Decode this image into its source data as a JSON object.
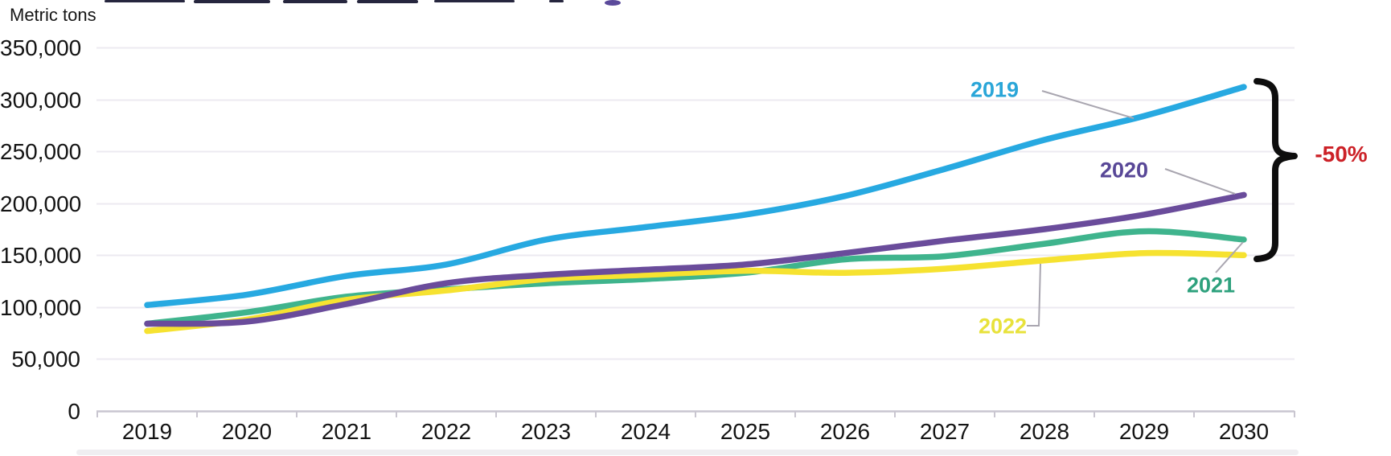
{
  "chart_data": {
    "type": "line",
    "y_axis_title": "Metric tons",
    "x_categories": [
      "2019",
      "2020",
      "2021",
      "2022",
      "2023",
      "2024",
      "2025",
      "2026",
      "2027",
      "2028",
      "2029",
      "2030"
    ],
    "y_ticks": [
      0,
      50000,
      100000,
      150000,
      200000,
      250000,
      300000,
      350000
    ],
    "y_tick_labels": [
      "0",
      "50,000",
      "100,000",
      "150,000",
      "200,000",
      "250,000",
      "300,000",
      "350,000"
    ],
    "ylim": [
      0,
      350000
    ],
    "grid": "horizontal",
    "legend_position": "end-of-line labels",
    "series": [
      {
        "name": "2019",
        "color": "#27a9e1",
        "label_color": "#2aa6d8",
        "values": [
          102000,
          112000,
          130000,
          141000,
          165000,
          177000,
          189000,
          207000,
          233000,
          261000,
          284000,
          312000
        ]
      },
      {
        "name": "2021",
        "color": "#3fb48d",
        "label_color": "#2ea17d",
        "values": [
          84000,
          95000,
          110000,
          117000,
          123000,
          127000,
          133000,
          146000,
          149000,
          161000,
          173000,
          165000
        ]
      },
      {
        "name": "2022",
        "color": "#f6e230",
        "label_color": "#e8e23b",
        "values": [
          77000,
          88000,
          107000,
          116000,
          127000,
          131000,
          135000,
          133000,
          137000,
          145000,
          152000,
          150000
        ]
      },
      {
        "name": "2020",
        "color": "#6a4c9b",
        "label_color": "#584797",
        "values": [
          84000,
          86000,
          103000,
          123000,
          131000,
          136000,
          141000,
          152000,
          164000,
          175000,
          189000,
          208000
        ]
      }
    ],
    "annotation": {
      "label": "-50%",
      "color": "#cc2127",
      "bracket_from_series": "2019",
      "bracket_to_series": "2022",
      "at_x": "2030"
    }
  },
  "series_end_labels": {
    "s2019": "2019",
    "s2020": "2020",
    "s2021": "2021",
    "s2022": "2022"
  }
}
